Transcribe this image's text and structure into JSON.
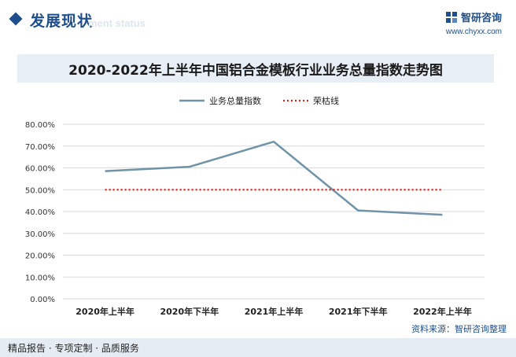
{
  "header": {
    "title": "发展现状",
    "subtitle": "ment status",
    "brand_name": "智研咨询",
    "brand_url": "www.chyxx.com"
  },
  "footer": {
    "left_text": "精品报告 · 专项定制 · 品质服务",
    "source_label": "资料来源：",
    "source_value": "智研咨询整理"
  },
  "colors": {
    "index_line": "#6f93a8",
    "threshold_line": "#d9241c",
    "grid": "#d9d9d9",
    "brand": "#1f4e8c"
  },
  "chart_data": {
    "type": "line",
    "title": "2020-2022年上半年中国铝合金模板行业业务总量指数走势图",
    "categories": [
      "2020年上半年",
      "2020年下半年",
      "2021年上半年",
      "2021年下半年",
      "2022年上半年"
    ],
    "series": [
      {
        "name": "业务总量指数",
        "values": [
          58.5,
          60.5,
          72.0,
          40.5,
          38.5
        ],
        "style": "solid"
      },
      {
        "name": "荣枯线",
        "values": [
          50.0,
          50.0,
          50.0,
          50.0,
          50.0
        ],
        "style": "dotted"
      }
    ],
    "ylim": [
      0,
      80
    ],
    "yticks": [
      "0.00%",
      "10.00%",
      "20.00%",
      "30.00%",
      "40.00%",
      "50.00%",
      "60.00%",
      "70.00%",
      "80.00%"
    ],
    "ytick_values": [
      0,
      10,
      20,
      30,
      40,
      50,
      60,
      70,
      80
    ],
    "grid": true,
    "legend_position": "top-center"
  }
}
